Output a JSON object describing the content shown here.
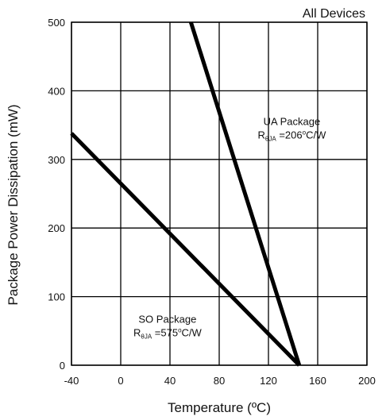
{
  "chart_data": {
    "type": "line",
    "title": "All Devices",
    "xlabel": "Temperature (ºC)",
    "ylabel": "Package Power Dissipation (mW)",
    "xlim": [
      -40,
      200
    ],
    "ylim": [
      0,
      500
    ],
    "x_ticks": [
      "-40",
      "0",
      "40",
      "80",
      "120",
      "160",
      "200"
    ],
    "y_ticks": [
      "0",
      "100",
      "200",
      "300",
      "400",
      "500"
    ],
    "grid": true,
    "series": [
      {
        "name": "UA Package",
        "color": "#000000",
        "x": [
          57,
          145
        ],
        "y": [
          500,
          0
        ]
      },
      {
        "name": "SO Package",
        "color": "#000000",
        "x": [
          -40,
          145
        ],
        "y": [
          338,
          0
        ]
      }
    ],
    "annotations": [
      {
        "series_name": "UA Package",
        "line1": "UA Package",
        "r_main": "R",
        "r_sub": "θJA",
        "r_value_prefix": " =206",
        "r_sup": "o",
        "r_unit": "C/W",
        "anchor_x": 139,
        "anchor_y": 350
      },
      {
        "series_name": "SO Package",
        "line1": "SO Package",
        "r_main": "R",
        "r_sub": "θJA",
        "r_value_prefix": " =575",
        "r_sup": "o",
        "r_unit": "C/W",
        "anchor_x": 38,
        "anchor_y": 62
      }
    ]
  }
}
